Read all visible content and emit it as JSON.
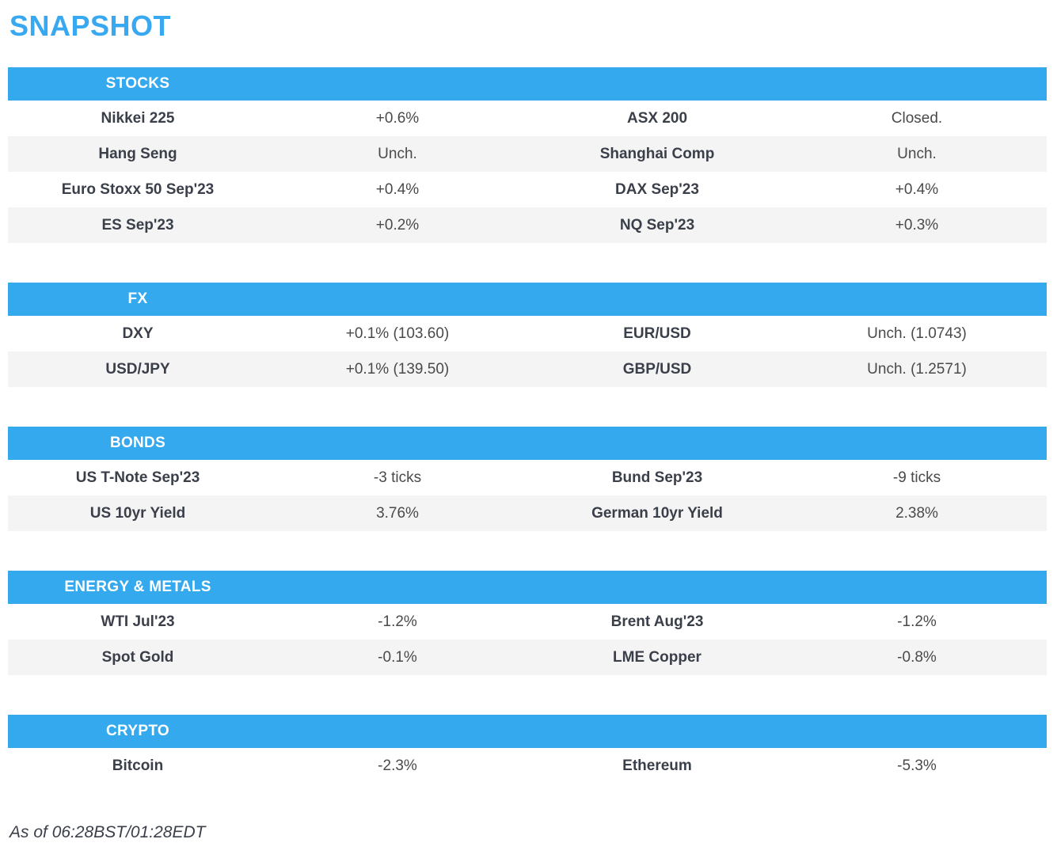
{
  "page": {
    "title": "SNAPSHOT",
    "footer": "As of 06:28BST/01:28EDT"
  },
  "colors": {
    "accent_blue": "#35A9EE",
    "header_text": "#FFFFFF",
    "row_alt_bg": "#F4F4F4",
    "name_text": "#3A3F4A",
    "value_text": "#4A4A4A"
  },
  "sections": [
    {
      "title": "STOCKS",
      "rows": [
        {
          "left_name": "Nikkei 225",
          "left_value": "+0.6%",
          "right_name": "ASX 200",
          "right_value": "Closed."
        },
        {
          "left_name": "Hang Seng",
          "left_value": "Unch.",
          "right_name": "Shanghai Comp",
          "right_value": "Unch."
        },
        {
          "left_name": "Euro Stoxx 50 Sep'23",
          "left_value": "+0.4%",
          "right_name": "DAX Sep'23",
          "right_value": "+0.4%"
        },
        {
          "left_name": "ES Sep'23",
          "left_value": "+0.2%",
          "right_name": "NQ Sep'23",
          "right_value": "+0.3%"
        }
      ]
    },
    {
      "title": "FX",
      "rows": [
        {
          "left_name": "DXY",
          "left_value": "+0.1% (103.60)",
          "right_name": "EUR/USD",
          "right_value": "Unch. (1.0743)"
        },
        {
          "left_name": "USD/JPY",
          "left_value": "+0.1% (139.50)",
          "right_name": "GBP/USD",
          "right_value": "Unch. (1.2571)"
        }
      ]
    },
    {
      "title": "BONDS",
      "rows": [
        {
          "left_name": "US T-Note Sep'23",
          "left_value": "-3 ticks",
          "right_name": "Bund Sep'23",
          "right_value": "-9 ticks"
        },
        {
          "left_name": "US 10yr Yield",
          "left_value": "3.76%",
          "right_name": "German 10yr Yield",
          "right_value": "2.38%"
        }
      ]
    },
    {
      "title": "ENERGY & METALS",
      "rows": [
        {
          "left_name": "WTI Jul'23",
          "left_value": "-1.2%",
          "right_name": "Brent Aug'23",
          "right_value": "-1.2%"
        },
        {
          "left_name": "Spot Gold",
          "left_value": "-0.1%",
          "right_name": "LME Copper",
          "right_value": "-0.8%"
        }
      ]
    },
    {
      "title": "CRYPTO",
      "rows": [
        {
          "left_name": "Bitcoin",
          "left_value": "-2.3%",
          "right_name": "Ethereum",
          "right_value": "-5.3%"
        }
      ]
    }
  ]
}
